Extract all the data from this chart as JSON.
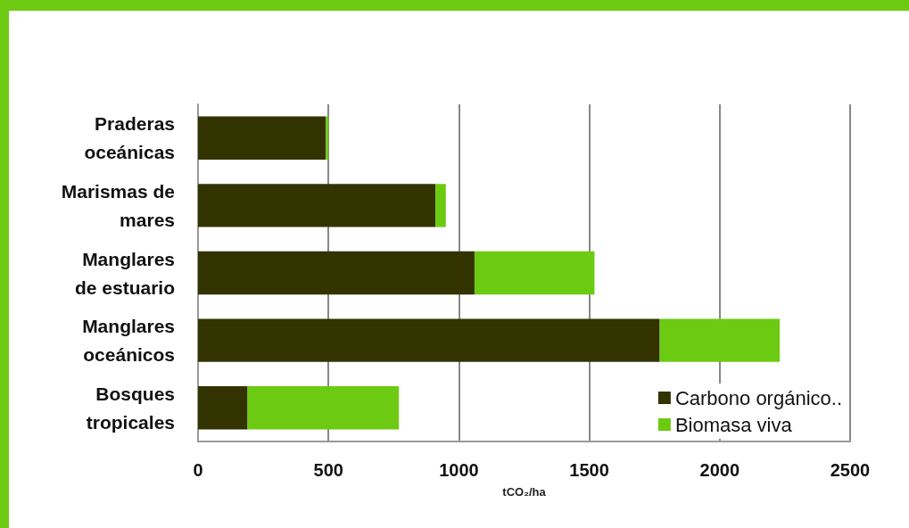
{
  "chart_data": {
    "type": "bar",
    "orientation": "horizontal",
    "stacked": true,
    "xlabel": "tCO₂/ha",
    "categories": [
      "Praderas\noceánicas",
      "Marismas de\nmares",
      "Manglares\nde estuario",
      "Manglares\noceánicos",
      "Bosques\ntropicales"
    ],
    "series": [
      {
        "name": "Carbono orgánico..",
        "color": "#333300",
        "values": [
          490,
          910,
          1060,
          1770,
          190
        ]
      },
      {
        "name": "Biomasa viva",
        "color": "#6dca12",
        "values": [
          10,
          40,
          460,
          460,
          580
        ]
      }
    ],
    "xlim": [
      0,
      2500
    ],
    "xticks": [
      0,
      500,
      1000,
      1500,
      2000,
      2500
    ],
    "grid": "x",
    "legend": "bottom right"
  }
}
